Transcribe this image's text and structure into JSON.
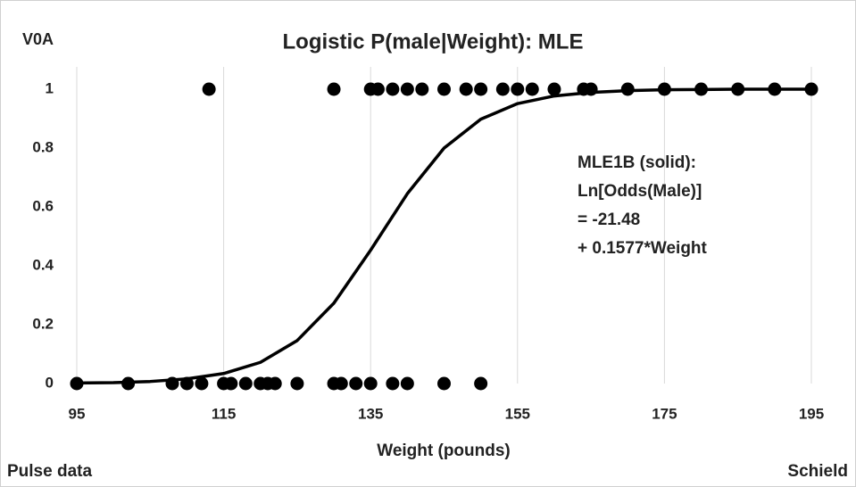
{
  "chart_data": {
    "type": "scatter",
    "corner_label": "V0A",
    "title": "Logistic P(male|Weight): MLE",
    "xlabel": "Weight (pounds)",
    "footer_left": "Pulse data",
    "footer_right": "Schield",
    "annotation": [
      "MLE1B (solid):",
      "Ln[Odds(Male)]",
      "= -21.48",
      "+ 0.1577*Weight"
    ],
    "xlim": [
      95,
      195
    ],
    "xticks": [
      95,
      115,
      135,
      155,
      175,
      195
    ],
    "ylim": [
      0,
      1
    ],
    "yticks": [
      0,
      0.2,
      0.4,
      0.6,
      0.8,
      1
    ],
    "grid": "x",
    "series": [
      {
        "type": "scatter",
        "color": "#000000",
        "x": [
          113,
          130,
          135,
          136,
          138,
          140,
          142,
          145,
          148,
          150,
          153,
          155,
          157,
          160,
          164,
          165,
          170,
          175,
          180,
          185,
          190,
          195
        ],
        "values": [
          1,
          1,
          1,
          1,
          1,
          1,
          1,
          1,
          1,
          1,
          1,
          1,
          1,
          1,
          1,
          1,
          1,
          1,
          1,
          1,
          1,
          1
        ]
      },
      {
        "type": "scatter",
        "color": "#000000",
        "x": [
          95,
          102,
          108,
          110,
          112,
          115,
          116,
          118,
          120,
          121,
          122,
          125,
          130,
          131,
          133,
          135,
          138,
          140,
          145,
          150
        ],
        "values": [
          0,
          0,
          0,
          0,
          0,
          0,
          0,
          0,
          0,
          0,
          0,
          0,
          0,
          0,
          0,
          0,
          0,
          0,
          0,
          0
        ]
      },
      {
        "type": "line",
        "color": "#000000",
        "x": [
          95,
          100,
          105,
          110,
          115,
          120,
          125,
          130,
          135,
          140,
          145,
          150,
          155,
          160,
          165,
          170,
          175,
          180,
          185,
          190,
          195
        ],
        "values": [
          0.002,
          0.003,
          0.007,
          0.016,
          0.034,
          0.072,
          0.146,
          0.273,
          0.453,
          0.645,
          0.8,
          0.898,
          0.951,
          0.977,
          0.989,
          0.995,
          0.998,
          0.999,
          1,
          1,
          1
        ]
      }
    ]
  }
}
